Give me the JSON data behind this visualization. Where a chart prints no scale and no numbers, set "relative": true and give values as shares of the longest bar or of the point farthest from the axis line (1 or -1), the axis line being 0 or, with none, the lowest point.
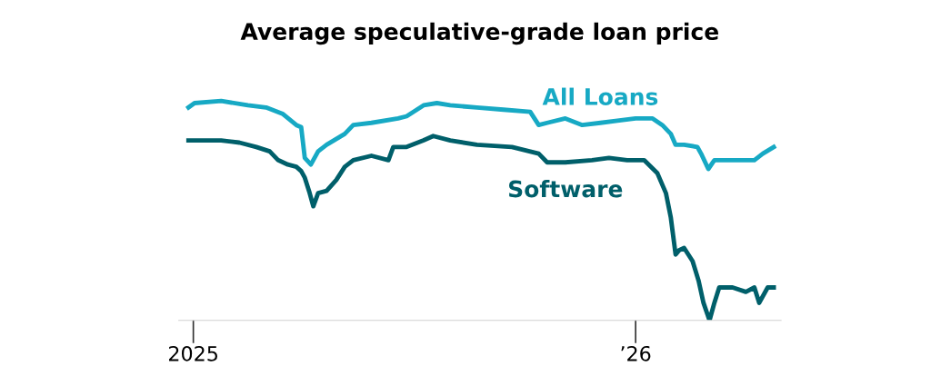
{
  "chart_data": {
    "type": "line",
    "title": "Average speculative-grade loan price",
    "relative": true,
    "xlim": [
      "2024-12-20",
      "2026-05-01"
    ],
    "xticks": [
      {
        "value": "2025-01-01",
        "label": "2025"
      },
      {
        "value": "2026-01-01",
        "label": "’26"
      }
    ],
    "grid": false,
    "legend": false,
    "marker": "none",
    "line_style": "solid",
    "series": [
      {
        "name": "All Loans",
        "color": "#17a9c4",
        "x": [
          "2024-12-28",
          "2025-01-02",
          "2025-01-24",
          "2025-02-15",
          "2025-03-02",
          "2025-03-16",
          "2025-03-27",
          "2025-03-31",
          "2025-04-03",
          "2025-04-08",
          "2025-04-14",
          "2025-04-21",
          "2025-05-06",
          "2025-05-13",
          "2025-05-28",
          "2025-06-19",
          "2025-06-26",
          "2025-07-10",
          "2025-07-21",
          "2025-08-01",
          "2025-08-23",
          "2025-09-14",
          "2025-10-06",
          "2025-10-13",
          "2025-10-20",
          "2025-11-04",
          "2025-11-18",
          "2025-12-03",
          "2025-12-17",
          "2026-01-01",
          "2026-01-15",
          "2026-01-23",
          "2026-01-30",
          "2026-02-03",
          "2026-02-10",
          "2026-02-21",
          "2026-02-24",
          "2026-03-02",
          "2026-03-07",
          "2026-03-15",
          "2026-03-29",
          "2026-04-09",
          "2026-04-16",
          "2026-04-25"
        ],
        "values": [
          0.97,
          0.99,
          1.0,
          0.98,
          0.97,
          0.94,
          0.89,
          0.88,
          0.74,
          0.71,
          0.77,
          0.8,
          0.85,
          0.89,
          0.9,
          0.92,
          0.93,
          0.98,
          0.99,
          0.98,
          0.97,
          0.96,
          0.95,
          0.89,
          0.9,
          0.92,
          0.89,
          0.9,
          0.91,
          0.92,
          0.92,
          0.89,
          0.85,
          0.8,
          0.8,
          0.79,
          0.76,
          0.69,
          0.73,
          0.73,
          0.73,
          0.73,
          0.76,
          0.79
        ]
      },
      {
        "name": "Software",
        "color": "#005f6a",
        "x": [
          "2024-12-28",
          "2025-01-24",
          "2025-02-08",
          "2025-02-22",
          "2025-03-05",
          "2025-03-12",
          "2025-03-20",
          "2025-03-27",
          "2025-03-31",
          "2025-04-03",
          "2025-04-07",
          "2025-04-10",
          "2025-04-14",
          "2025-04-21",
          "2025-04-29",
          "2025-05-06",
          "2025-05-13",
          "2025-05-28",
          "2025-06-11",
          "2025-06-15",
          "2025-06-26",
          "2025-07-10",
          "2025-07-18",
          "2025-08-01",
          "2025-08-23",
          "2025-09-21",
          "2025-10-13",
          "2025-10-20",
          "2025-11-04",
          "2025-11-26",
          "2025-12-10",
          "2025-12-25",
          "2026-01-08",
          "2026-01-19",
          "2026-01-26",
          "2026-01-30",
          "2026-02-03",
          "2026-02-06",
          "2026-02-10",
          "2026-02-17",
          "2026-02-22",
          "2026-02-26",
          "2026-03-03",
          "2026-03-07",
          "2026-03-11",
          "2026-03-22",
          "2026-04-02",
          "2026-04-09",
          "2026-04-13",
          "2026-04-20",
          "2026-04-25"
        ],
        "values": [
          0.82,
          0.82,
          0.81,
          0.79,
          0.77,
          0.73,
          0.71,
          0.7,
          0.68,
          0.65,
          0.58,
          0.52,
          0.58,
          0.59,
          0.64,
          0.7,
          0.73,
          0.75,
          0.73,
          0.79,
          0.79,
          0.82,
          0.84,
          0.82,
          0.8,
          0.79,
          0.76,
          0.72,
          0.72,
          0.73,
          0.74,
          0.73,
          0.73,
          0.67,
          0.58,
          0.47,
          0.3,
          0.32,
          0.33,
          0.27,
          0.18,
          0.08,
          0.0,
          0.08,
          0.15,
          0.15,
          0.13,
          0.15,
          0.08,
          0.15,
          0.15
        ]
      }
    ]
  }
}
